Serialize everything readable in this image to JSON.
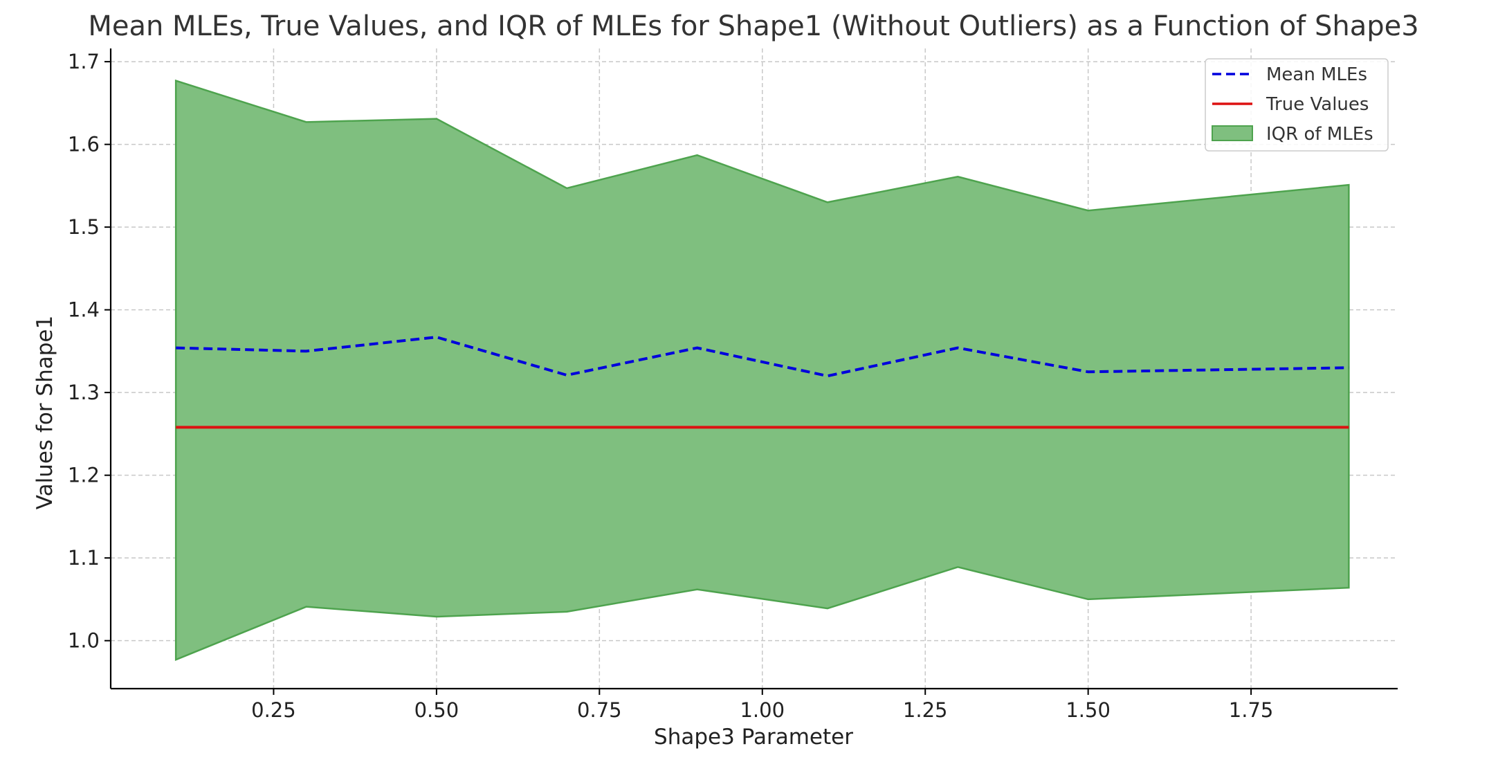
{
  "chart_data": {
    "type": "line",
    "title": "Mean MLEs, True Values, and IQR of MLEs for Shape1 (Without Outliers) as a Function of Shape3",
    "xlabel": "Shape3 Parameter",
    "ylabel": "Values for Shape1",
    "x": [
      0.1,
      0.3,
      0.5,
      0.7,
      0.9,
      1.1,
      1.3,
      1.5,
      1.9
    ],
    "xlim": [
      0.0,
      1.975
    ],
    "ylim": [
      0.942,
      1.716
    ],
    "xticks": [
      0.25,
      0.5,
      0.75,
      1.0,
      1.25,
      1.5,
      1.75
    ],
    "xtick_labels": [
      "0.25",
      "0.50",
      "0.75",
      "1.00",
      "1.25",
      "1.50",
      "1.75"
    ],
    "yticks": [
      1.0,
      1.1,
      1.2,
      1.3,
      1.4,
      1.5,
      1.6,
      1.7
    ],
    "ytick_labels": [
      "1.0",
      "1.1",
      "1.2",
      "1.3",
      "1.4",
      "1.5",
      "1.6",
      "1.7"
    ],
    "grid": true,
    "legend_position": "top-right",
    "series": [
      {
        "name": "Mean MLEs",
        "kind": "line",
        "style": "dashed",
        "color": "#0000dd",
        "values": [
          1.354,
          1.35,
          1.367,
          1.321,
          1.354,
          1.32,
          1.354,
          1.325,
          1.33
        ]
      },
      {
        "name": "True Values",
        "kind": "line",
        "style": "solid",
        "color": "#dd1111",
        "values": [
          1.258,
          1.258,
          1.258,
          1.258,
          1.258,
          1.258,
          1.258,
          1.258,
          1.258
        ]
      },
      {
        "name": "IQR of MLEs",
        "kind": "band",
        "color": "#7fbf7f",
        "edge_color": "#4ea34e",
        "lower": [
          0.977,
          1.041,
          1.029,
          1.035,
          1.062,
          1.039,
          1.089,
          1.05,
          1.064
        ],
        "upper": [
          1.677,
          1.627,
          1.631,
          1.547,
          1.587,
          1.53,
          1.561,
          1.52,
          1.551
        ]
      }
    ]
  }
}
